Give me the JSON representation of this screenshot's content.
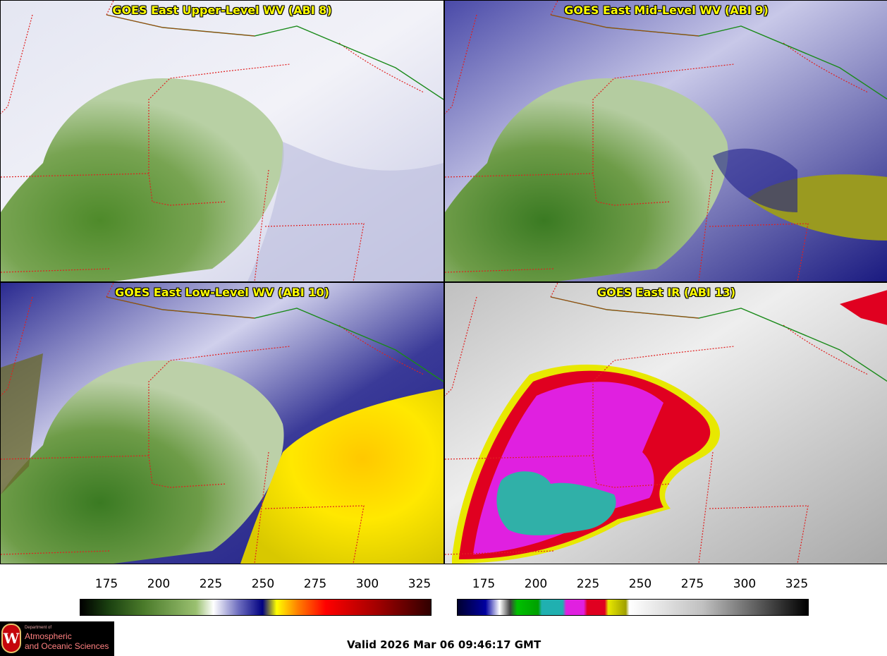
{
  "panels": [
    {
      "title": "GOES East Upper-Level WV (ABI 8)"
    },
    {
      "title": "GOES East Mid-Level WV (ABI 9)"
    },
    {
      "title": "GOES East Low-Level WV (ABI 10)"
    },
    {
      "title": "GOES East IR (ABI 13)"
    }
  ],
  "colorbar_left": {
    "ticks": [
      "175",
      "200",
      "225",
      "250",
      "275",
      "300",
      "325"
    ]
  },
  "colorbar_right": {
    "ticks": [
      "175",
      "200",
      "225",
      "250",
      "275",
      "300",
      "325"
    ]
  },
  "valid_time": "Valid 2026 Mar 06 09:46:17 GMT",
  "logo": {
    "dept": "Department of",
    "line1": "Atmospheric",
    "line2": "and Oceanic Sciences",
    "crest": "W"
  },
  "colors": {
    "title": "#ffff00",
    "state_lines": "#e02020",
    "country_line": "#1a8a1a",
    "wv_green": "#5a8a32",
    "wv_blue": "#2a2a9a",
    "ir_magenta": "#e020e0",
    "ir_red": "#e00020",
    "ir_cyan": "#20b0b0"
  }
}
